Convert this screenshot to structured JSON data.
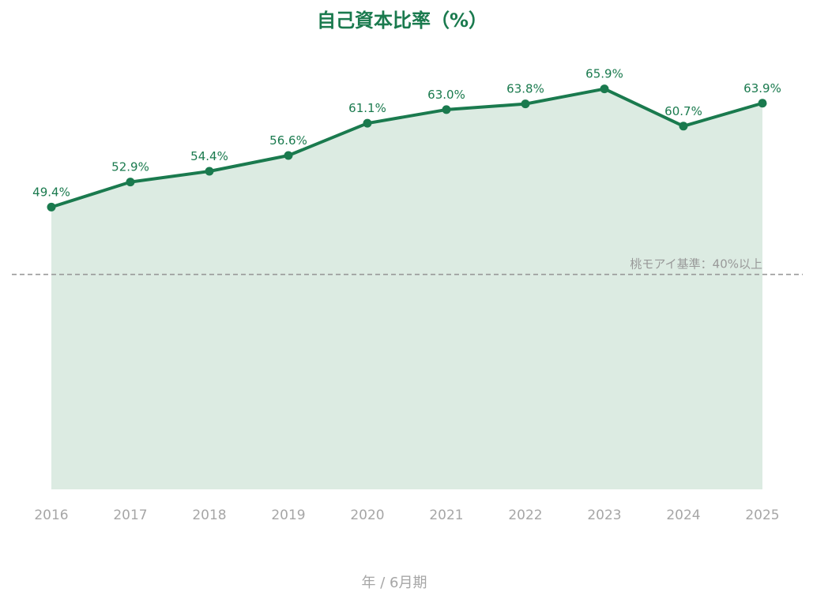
{
  "chart_data": {
    "type": "area",
    "title": "自己資本比率（%）",
    "xlabel": "年 / 6月期",
    "ylabel": "",
    "x": [
      "2016",
      "2017",
      "2018",
      "2019",
      "2020",
      "2021",
      "2022",
      "2023",
      "2024",
      "2025"
    ],
    "values": [
      49.4,
      52.9,
      54.4,
      56.6,
      61.1,
      63.0,
      63.8,
      65.9,
      60.7,
      63.9
    ],
    "data_labels": [
      "49.4%",
      "52.9%",
      "54.4%",
      "56.6%",
      "61.1%",
      "63.0%",
      "63.8%",
      "65.9%",
      "60.7%",
      "63.9%"
    ],
    "ylim": [
      10,
      75
    ],
    "grid": false,
    "reference_line": {
      "value": 40,
      "label": "桃モアイ基準：40%以上"
    },
    "colors": {
      "line": "#1a7a4e",
      "fill": "#dcebe2",
      "reference": "#999999",
      "tick": "#a6a6a6"
    }
  }
}
